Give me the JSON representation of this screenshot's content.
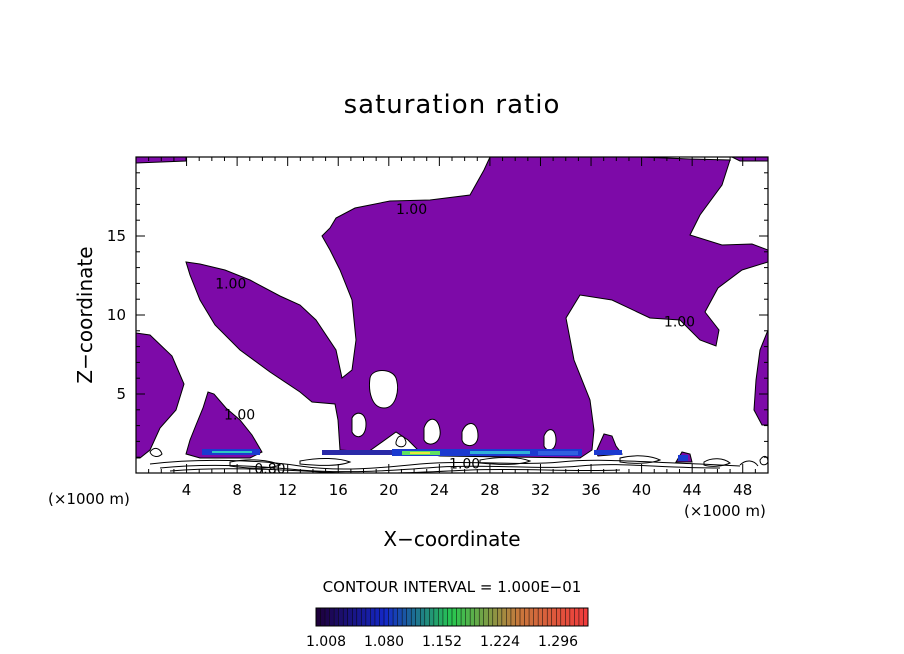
{
  "chart_data": {
    "type": "contour",
    "title": "saturation ratio",
    "xlabel": "X−coordinate",
    "ylabel": "Z−coordinate",
    "x_units": "(×1000 m)",
    "x_units_right": "(×1000 m)",
    "xlim": [
      0,
      50
    ],
    "ylim": [
      0,
      20
    ],
    "x_ticks": [
      4,
      8,
      12,
      16,
      20,
      24,
      28,
      32,
      36,
      40,
      44,
      48
    ],
    "y_ticks": [
      5,
      10,
      15
    ],
    "contour_interval_text": "CONTOUR INTERVAL = 1.000E−01",
    "contour_labels": [
      {
        "text": "1.00",
        "x": 21.8,
        "z": 16.7
      },
      {
        "text": "1.00",
        "x": 7.5,
        "z": 12.0
      },
      {
        "text": "1.00",
        "x": 43.0,
        "z": 9.6
      },
      {
        "text": "1.00",
        "x": 8.2,
        "z": 3.7
      },
      {
        "text": "0.80",
        "x": 10.6,
        "z": 0.3
      },
      {
        "text": "1.00",
        "x": 26.0,
        "z": 0.6
      }
    ],
    "colorbar": {
      "tick_labels": [
        "1.008",
        "1.080",
        "1.152",
        "1.224",
        "1.296"
      ],
      "range": [
        1.0,
        1.3
      ]
    },
    "colors": {
      "fill_base": "#7d0aa8",
      "contour_line": "#000000"
    },
    "grid": false
  }
}
